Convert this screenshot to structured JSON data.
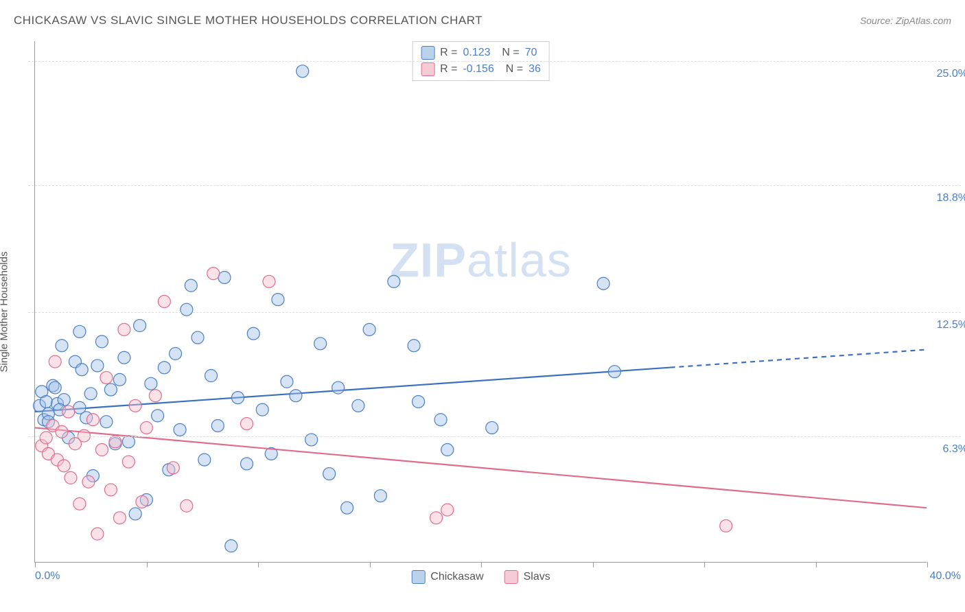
{
  "header": {
    "title": "CHICKASAW VS SLAVIC SINGLE MOTHER HOUSEHOLDS CORRELATION CHART",
    "source": "Source: ZipAtlas.com"
  },
  "ylabel": "Single Mother Households",
  "watermark": {
    "zip": "ZIP",
    "atlas": "atlas"
  },
  "chart": {
    "type": "scatter",
    "xlim": [
      0,
      40
    ],
    "ylim": [
      0,
      26
    ],
    "x_axis_labels": {
      "min": "0.0%",
      "max": "40.0%"
    },
    "x_tick_positions": [
      0,
      5,
      10,
      15,
      20,
      25,
      30,
      35,
      40
    ],
    "y_gridlines": [
      {
        "value": 6.3,
        "label": "6.3%"
      },
      {
        "value": 12.5,
        "label": "12.5%"
      },
      {
        "value": 18.8,
        "label": "18.8%"
      },
      {
        "value": 25.0,
        "label": "25.0%"
      }
    ],
    "background_color": "#ffffff",
    "grid_color": "#dcdcdc",
    "axis_color": "#999999",
    "label_color": "#4a7fc4",
    "marker_radius": 9,
    "marker_fill_opacity": 0.45,
    "marker_stroke_width": 1.2,
    "series": [
      {
        "name": "Chickasaw",
        "color_fill": "#a4c2e8",
        "color_stroke": "#4a7fc4",
        "regression": {
          "R": "0.123",
          "N": "70",
          "y_at_xmin": 7.5,
          "y_at_xmax": 10.6,
          "solid_until_x": 28.5,
          "line_color": "#3b6fc0",
          "line_width": 2.2
        },
        "points": [
          [
            0.2,
            7.8
          ],
          [
            0.3,
            8.5
          ],
          [
            0.4,
            7.1
          ],
          [
            0.5,
            8.0
          ],
          [
            0.6,
            7.4
          ],
          [
            0.8,
            8.8
          ],
          [
            0.9,
            8.7
          ],
          [
            1.0,
            7.9
          ],
          [
            1.2,
            10.8
          ],
          [
            1.3,
            8.1
          ],
          [
            1.5,
            6.2
          ],
          [
            1.8,
            10.0
          ],
          [
            2.0,
            11.5
          ],
          [
            2.1,
            9.6
          ],
          [
            2.3,
            7.2
          ],
          [
            2.5,
            8.4
          ],
          [
            2.6,
            4.3
          ],
          [
            2.8,
            9.8
          ],
          [
            3.0,
            11.0
          ],
          [
            3.2,
            7.0
          ],
          [
            3.4,
            8.6
          ],
          [
            3.6,
            5.9
          ],
          [
            3.8,
            9.1
          ],
          [
            4.0,
            10.2
          ],
          [
            4.2,
            6.0
          ],
          [
            4.5,
            2.4
          ],
          [
            4.7,
            11.8
          ],
          [
            5.0,
            3.1
          ],
          [
            5.2,
            8.9
          ],
          [
            5.5,
            7.3
          ],
          [
            5.8,
            9.7
          ],
          [
            6.0,
            4.6
          ],
          [
            6.3,
            10.4
          ],
          [
            6.5,
            6.6
          ],
          [
            6.8,
            12.6
          ],
          [
            7.0,
            13.8
          ],
          [
            7.3,
            11.2
          ],
          [
            7.6,
            5.1
          ],
          [
            7.9,
            9.3
          ],
          [
            8.2,
            6.8
          ],
          [
            8.5,
            14.2
          ],
          [
            8.8,
            0.8
          ],
          [
            9.1,
            8.2
          ],
          [
            9.5,
            4.9
          ],
          [
            9.8,
            11.4
          ],
          [
            10.2,
            7.6
          ],
          [
            10.6,
            5.4
          ],
          [
            10.9,
            13.1
          ],
          [
            11.3,
            9.0
          ],
          [
            11.7,
            8.3
          ],
          [
            12.0,
            24.5
          ],
          [
            12.4,
            6.1
          ],
          [
            12.8,
            10.9
          ],
          [
            13.2,
            4.4
          ],
          [
            13.6,
            8.7
          ],
          [
            14.0,
            2.7
          ],
          [
            14.5,
            7.8
          ],
          [
            15.0,
            11.6
          ],
          [
            15.5,
            3.3
          ],
          [
            16.1,
            14.0
          ],
          [
            17.0,
            10.8
          ],
          [
            17.2,
            8.0
          ],
          [
            18.2,
            7.1
          ],
          [
            18.5,
            5.6
          ],
          [
            20.5,
            6.7
          ],
          [
            25.5,
            13.9
          ],
          [
            26.0,
            9.5
          ],
          [
            0.6,
            7.0
          ],
          [
            1.1,
            7.6
          ],
          [
            2.0,
            7.7
          ]
        ]
      },
      {
        "name": "Slavs",
        "color_fill": "#f5bfcd",
        "color_stroke": "#e06c8c",
        "regression": {
          "R": "-0.156",
          "N": "36",
          "y_at_xmin": 6.7,
          "y_at_xmax": 2.7,
          "solid_until_x": 40,
          "line_color": "#e06c8c",
          "line_width": 2.2
        },
        "points": [
          [
            0.3,
            5.8
          ],
          [
            0.5,
            6.2
          ],
          [
            0.6,
            5.4
          ],
          [
            0.8,
            6.8
          ],
          [
            0.9,
            10.0
          ],
          [
            1.0,
            5.1
          ],
          [
            1.2,
            6.5
          ],
          [
            1.3,
            4.8
          ],
          [
            1.5,
            7.5
          ],
          [
            1.6,
            4.2
          ],
          [
            1.8,
            5.9
          ],
          [
            2.0,
            2.9
          ],
          [
            2.2,
            6.3
          ],
          [
            2.4,
            4.0
          ],
          [
            2.6,
            7.1
          ],
          [
            2.8,
            1.4
          ],
          [
            3.0,
            5.6
          ],
          [
            3.2,
            9.2
          ],
          [
            3.4,
            3.6
          ],
          [
            3.6,
            6.0
          ],
          [
            3.8,
            2.2
          ],
          [
            4.0,
            11.6
          ],
          [
            4.2,
            5.0
          ],
          [
            4.5,
            7.8
          ],
          [
            4.8,
            3.0
          ],
          [
            5.0,
            6.7
          ],
          [
            5.4,
            8.3
          ],
          [
            5.8,
            13.0
          ],
          [
            6.2,
            4.7
          ],
          [
            6.8,
            2.8
          ],
          [
            8.0,
            14.4
          ],
          [
            9.5,
            6.9
          ],
          [
            10.5,
            14.0
          ],
          [
            18.0,
            2.2
          ],
          [
            18.5,
            2.6
          ],
          [
            31.0,
            1.8
          ]
        ]
      }
    ]
  },
  "bottom_legend": [
    {
      "label": "Chickasaw",
      "swatch": "blue"
    },
    {
      "label": "Slavs",
      "swatch": "pink"
    }
  ]
}
